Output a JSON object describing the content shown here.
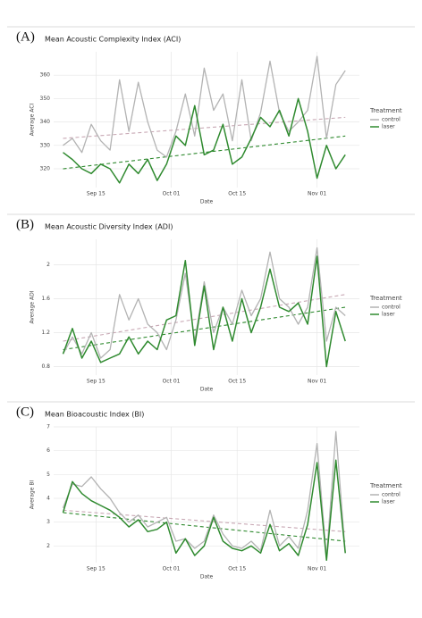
{
  "chart_data": [
    {
      "type": "line",
      "panel_label": "(A)",
      "title": "Mean Acoustic Complexity Index (ACI)",
      "x_label": "Date",
      "y_label": "Average ACI",
      "legend_title": "Treatment",
      "legend": "right",
      "grid": true,
      "x": [
        "Sep 08",
        "Sep 10",
        "Sep 12",
        "Sep 14",
        "Sep 16",
        "Sep 18",
        "Sep 20",
        "Sep 22",
        "Sep 24",
        "Sep 26",
        "Sep 28",
        "Sep 30",
        "Oct 02",
        "Oct 04",
        "Oct 06",
        "Oct 08",
        "Oct 10",
        "Oct 12",
        "Oct 14",
        "Oct 16",
        "Oct 18",
        "Oct 20",
        "Oct 22",
        "Oct 24",
        "Oct 26",
        "Oct 28",
        "Oct 30",
        "Nov 01",
        "Nov 03",
        "Nov 05",
        "Nov 07"
      ],
      "xlim": [
        "Sep 06",
        "Nov 10"
      ],
      "xticks": [
        "Sep 15",
        "Oct 01",
        "Oct 15",
        "Nov 01"
      ],
      "ylim": [
        312,
        370
      ],
      "yticks": [
        320,
        330,
        340,
        350,
        360
      ],
      "series": [
        {
          "name": "control",
          "color": "#b3b3b3",
          "trend_color": "#c8a8b4",
          "trend": [
            333,
            342
          ],
          "values": [
            330,
            333,
            327,
            339,
            332,
            328,
            358,
            336,
            357,
            340,
            328,
            325,
            336,
            352,
            334,
            363,
            345,
            352,
            332,
            358,
            332,
            344,
            366,
            344,
            336,
            340,
            345,
            368,
            333,
            356,
            362
          ]
        },
        {
          "name": "laser",
          "color": "#2f8a2f",
          "trend_color": "#2f8a2f",
          "trend": [
            320,
            334
          ],
          "values": [
            327,
            324,
            320,
            318,
            322,
            320,
            314,
            322,
            318,
            324,
            315,
            322,
            334,
            330,
            347,
            326,
            328,
            339,
            322,
            325,
            333,
            342,
            338,
            345,
            334,
            350,
            336,
            316,
            330,
            320,
            326
          ]
        }
      ]
    },
    {
      "type": "line",
      "panel_label": "(B)",
      "title": "Mean Acoustic Diversity Index (ADI)",
      "x_label": "Date",
      "y_label": "Average ADI",
      "legend_title": "Treatment",
      "legend": "right",
      "grid": true,
      "x": [
        "Sep 08",
        "Sep 10",
        "Sep 12",
        "Sep 14",
        "Sep 16",
        "Sep 18",
        "Sep 20",
        "Sep 22",
        "Sep 24",
        "Sep 26",
        "Sep 28",
        "Sep 30",
        "Oct 02",
        "Oct 04",
        "Oct 06",
        "Oct 08",
        "Oct 10",
        "Oct 12",
        "Oct 14",
        "Oct 16",
        "Oct 18",
        "Oct 20",
        "Oct 22",
        "Oct 24",
        "Oct 26",
        "Oct 28",
        "Oct 30",
        "Nov 01",
        "Nov 03",
        "Nov 05",
        "Nov 07"
      ],
      "xlim": [
        "Sep 06",
        "Nov 10"
      ],
      "xticks": [
        "Sep 15",
        "Oct 01",
        "Oct 15",
        "Nov 01"
      ],
      "ylim": [
        0.7,
        2.3
      ],
      "yticks": [
        0.8,
        1.2,
        1.6,
        2.0
      ],
      "series": [
        {
          "name": "control",
          "color": "#b3b3b3",
          "trend_color": "#c8a8b4",
          "trend": [
            1.1,
            1.65
          ],
          "values": [
            0.95,
            1.15,
            0.95,
            1.2,
            0.9,
            1.0,
            1.65,
            1.35,
            1.6,
            1.3,
            1.2,
            1.0,
            1.35,
            1.9,
            1.1,
            1.8,
            1.2,
            1.5,
            1.3,
            1.7,
            1.4,
            1.6,
            2.15,
            1.6,
            1.5,
            1.3,
            1.5,
            2.2,
            1.1,
            1.5,
            1.4
          ]
        },
        {
          "name": "laser",
          "color": "#2f8a2f",
          "trend_color": "#2f8a2f",
          "trend": [
            1.0,
            1.5
          ],
          "values": [
            0.95,
            1.25,
            0.9,
            1.1,
            0.85,
            0.9,
            0.95,
            1.15,
            0.95,
            1.1,
            1.0,
            1.35,
            1.4,
            2.05,
            1.05,
            1.75,
            1.0,
            1.5,
            1.1,
            1.6,
            1.2,
            1.5,
            1.95,
            1.5,
            1.45,
            1.55,
            1.3,
            2.1,
            0.8,
            1.45,
            1.1
          ]
        }
      ]
    },
    {
      "type": "line",
      "panel_label": "(C)",
      "title": "Mean Bioacoustic Index (BI)",
      "x_label": "Date",
      "y_label": "Average BI",
      "legend_title": "Treatment",
      "legend": "right",
      "grid": true,
      "x": [
        "Sep 08",
        "Sep 10",
        "Sep 12",
        "Sep 14",
        "Sep 16",
        "Sep 18",
        "Sep 20",
        "Sep 22",
        "Sep 24",
        "Sep 26",
        "Sep 28",
        "Sep 30",
        "Oct 02",
        "Oct 04",
        "Oct 06",
        "Oct 08",
        "Oct 10",
        "Oct 12",
        "Oct 14",
        "Oct 16",
        "Oct 18",
        "Oct 20",
        "Oct 22",
        "Oct 24",
        "Oct 26",
        "Oct 28",
        "Oct 30",
        "Nov 01",
        "Nov 03",
        "Nov 05",
        "Nov 07"
      ],
      "xlim": [
        "Sep 06",
        "Nov 10"
      ],
      "xticks": [
        "Sep 15",
        "Oct 01",
        "Oct 15",
        "Nov 01"
      ],
      "ylim": [
        1.3,
        7
      ],
      "yticks": [
        2,
        3,
        4,
        5,
        6,
        7
      ],
      "series": [
        {
          "name": "control",
          "color": "#b3b3b3",
          "trend_color": "#c8a8b4",
          "trend": [
            3.5,
            2.6
          ],
          "values": [
            3.6,
            4.6,
            4.5,
            4.9,
            4.4,
            4.0,
            3.4,
            3.0,
            3.3,
            2.8,
            3.0,
            3.2,
            2.2,
            2.3,
            1.9,
            2.2,
            3.3,
            2.5,
            2.0,
            1.9,
            2.2,
            1.8,
            3.5,
            2.0,
            2.4,
            1.9,
            3.5,
            6.3,
            1.5,
            6.8,
            1.7
          ]
        },
        {
          "name": "laser",
          "color": "#2f8a2f",
          "trend_color": "#2f8a2f",
          "trend": [
            3.4,
            2.2
          ],
          "values": [
            3.4,
            4.7,
            4.2,
            3.9,
            3.7,
            3.5,
            3.2,
            2.8,
            3.1,
            2.6,
            2.7,
            3.0,
            1.7,
            2.3,
            1.6,
            2.0,
            3.2,
            2.2,
            1.9,
            1.8,
            2.0,
            1.7,
            2.9,
            1.8,
            2.1,
            1.6,
            2.9,
            5.5,
            1.4,
            5.6,
            1.7
          ]
        }
      ]
    }
  ]
}
